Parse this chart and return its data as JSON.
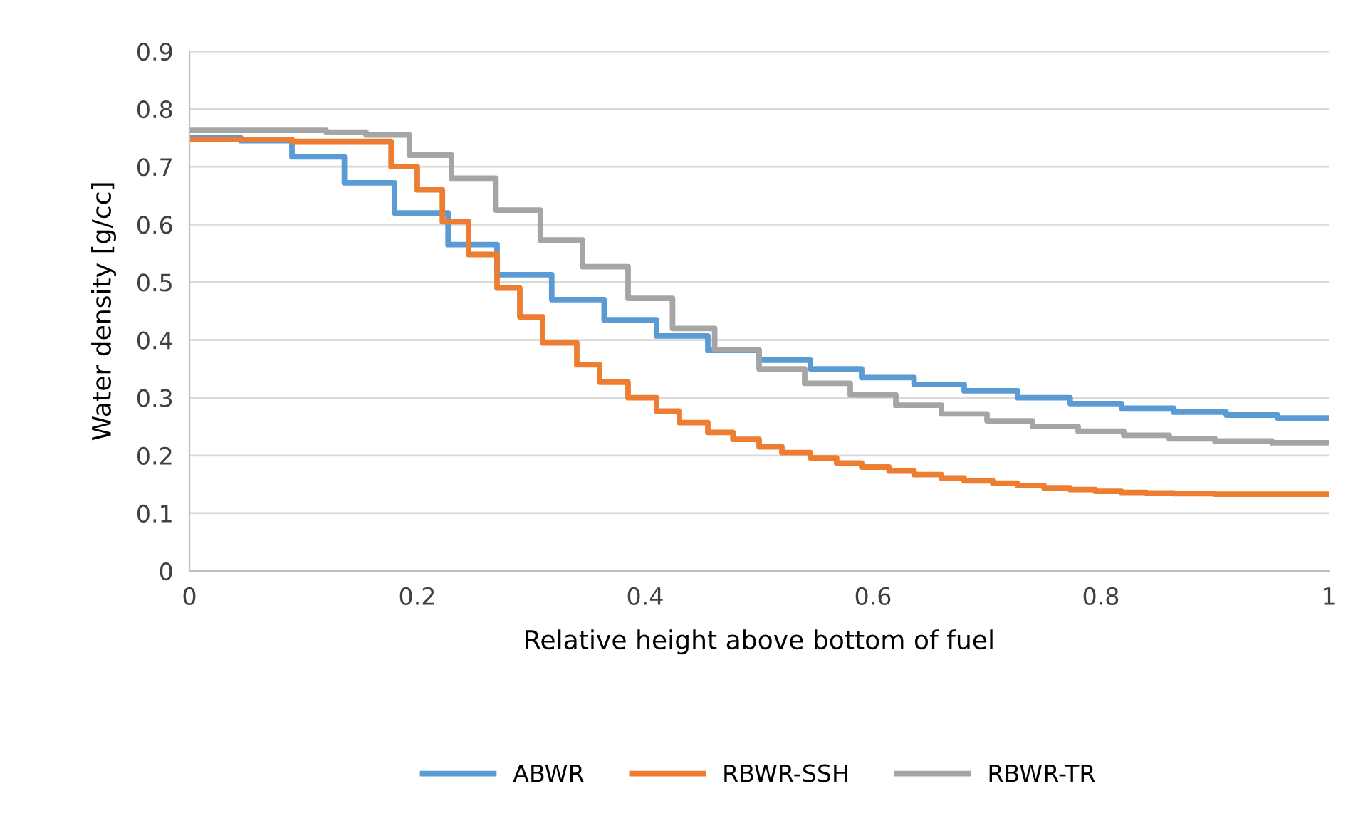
{
  "chart_data": {
    "type": "step",
    "xlabel": "Relative height above bottom of fuel",
    "ylabel": "Water density [g/cc]",
    "xlim": [
      0,
      1
    ],
    "ylim": [
      0,
      0.9
    ],
    "xticks": [
      0,
      0.2,
      0.4,
      0.6,
      0.8,
      1
    ],
    "yticks": [
      0,
      0.1,
      0.2,
      0.3,
      0.4,
      0.5,
      0.6,
      0.7,
      0.8,
      0.9
    ],
    "grid": "y",
    "legend": "bottom",
    "line_style": "solid",
    "marker": "none",
    "series": [
      {
        "name": "ABWR",
        "color": "#5b9bd5",
        "x": [
          0,
          0.045,
          0.09,
          0.136,
          0.18,
          0.227,
          0.27,
          0.318,
          0.364,
          0.41,
          0.455,
          0.5,
          0.545,
          0.59,
          0.636,
          0.68,
          0.727,
          0.773,
          0.818,
          0.864,
          0.91,
          0.955,
          1
        ],
        "values": [
          0.75,
          0.745,
          0.717,
          0.672,
          0.62,
          0.565,
          0.513,
          0.47,
          0.435,
          0.407,
          0.382,
          0.365,
          0.35,
          0.335,
          0.323,
          0.312,
          0.3,
          0.29,
          0.282,
          0.275,
          0.27,
          0.265,
          0.265
        ]
      },
      {
        "name": "RBWR-SSH",
        "color": "#ed7d31",
        "x": [
          0,
          0.09,
          0.177,
          0.2,
          0.222,
          0.245,
          0.27,
          0.29,
          0.31,
          0.34,
          0.36,
          0.385,
          0.41,
          0.43,
          0.455,
          0.477,
          0.5,
          0.52,
          0.545,
          0.568,
          0.59,
          0.614,
          0.636,
          0.66,
          0.68,
          0.705,
          0.727,
          0.75,
          0.773,
          0.795,
          0.818,
          0.84,
          0.864,
          0.9,
          1
        ],
        "values": [
          0.747,
          0.744,
          0.7,
          0.66,
          0.605,
          0.548,
          0.49,
          0.44,
          0.395,
          0.357,
          0.327,
          0.3,
          0.277,
          0.257,
          0.24,
          0.228,
          0.215,
          0.205,
          0.196,
          0.187,
          0.18,
          0.173,
          0.167,
          0.161,
          0.156,
          0.152,
          0.148,
          0.144,
          0.141,
          0.138,
          0.136,
          0.135,
          0.134,
          0.133,
          0.133
        ]
      },
      {
        "name": "RBWR-TR",
        "color": "#a5a5a5",
        "x": [
          0,
          0.12,
          0.155,
          0.193,
          0.23,
          0.269,
          0.308,
          0.345,
          0.385,
          0.424,
          0.461,
          0.5,
          0.54,
          0.58,
          0.62,
          0.66,
          0.7,
          0.74,
          0.78,
          0.82,
          0.86,
          0.9,
          0.95,
          1
        ],
        "values": [
          0.763,
          0.76,
          0.755,
          0.72,
          0.68,
          0.625,
          0.573,
          0.527,
          0.472,
          0.42,
          0.383,
          0.35,
          0.325,
          0.305,
          0.287,
          0.272,
          0.26,
          0.25,
          0.242,
          0.235,
          0.229,
          0.225,
          0.222,
          0.222
        ]
      }
    ]
  }
}
